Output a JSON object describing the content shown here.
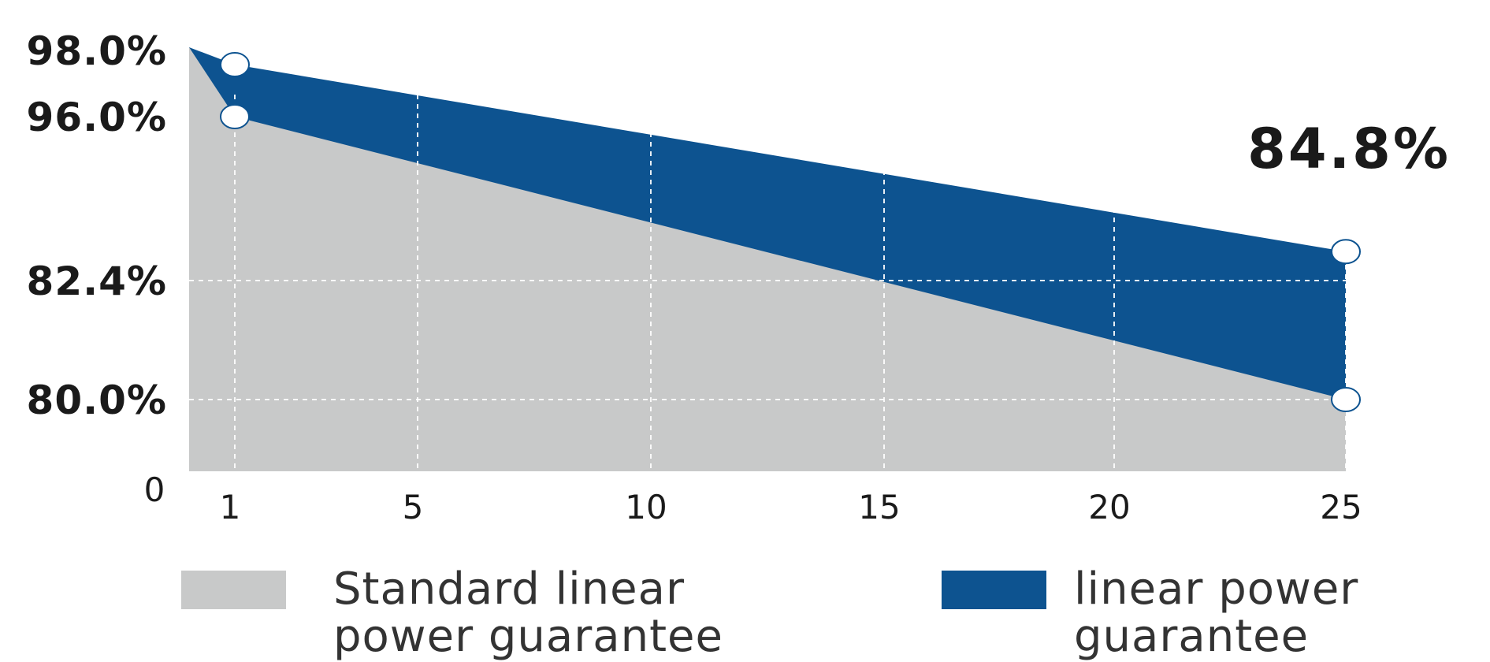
{
  "chart_data": {
    "type": "area",
    "x": [
      0,
      1,
      25
    ],
    "xticks": [
      "1",
      "5",
      "10",
      "15",
      "20",
      "25"
    ],
    "xtick_values": [
      1,
      5,
      10,
      15,
      20,
      25
    ],
    "yticks": [
      "98.0%",
      "96.0%",
      "82.4%",
      "80.0%"
    ],
    "ytick_values": [
      98.0,
      96.0,
      82.4,
      80.0
    ],
    "origin_label": "0",
    "series": [
      {
        "name": "Standard linear power guarantee",
        "color": "#c8c9c9",
        "x": [
          0,
          1,
          25
        ],
        "values": [
          98.0,
          96.0,
          80.0
        ]
      },
      {
        "name": "linear power guarantee",
        "color": "#0d5390",
        "x": [
          0,
          1,
          25
        ],
        "values": [
          98.0,
          97.5,
          84.8
        ]
      }
    ],
    "annotations": [
      {
        "text": "84.8%",
        "x": 25,
        "y": 84.8
      }
    ],
    "grid": true,
    "legend_position": "bottom"
  },
  "legend": {
    "items": [
      {
        "label": "Standard linear power guarantee",
        "color": "#c8c9c9"
      },
      {
        "label": "linear power guarantee",
        "color": "#0d5390"
      }
    ]
  }
}
